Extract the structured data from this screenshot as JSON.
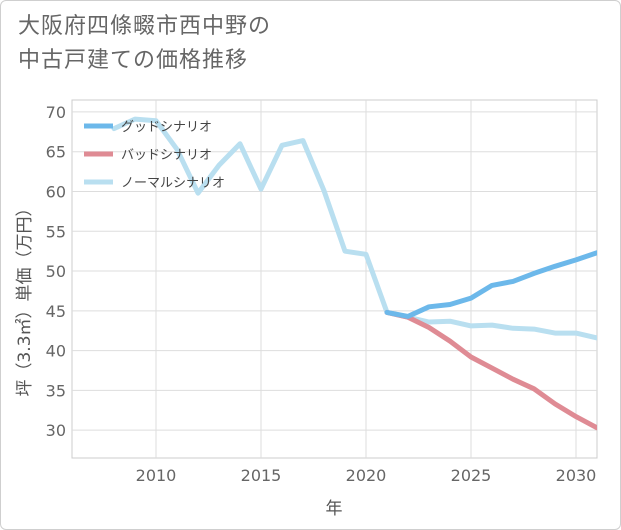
{
  "title_lines": [
    "大阪府四條畷市西中野の",
    "中古戸建ての価格推移"
  ],
  "chart_data": {
    "type": "line",
    "xlabel": "年",
    "ylabel": "坪（3.3㎡）単価（万円）",
    "xlim": [
      2006,
      2031
    ],
    "ylim": [
      26.5,
      71.5
    ],
    "xticks": [
      2010,
      2015,
      2020,
      2025,
      2030
    ],
    "yticks": [
      30,
      35,
      40,
      45,
      50,
      55,
      60,
      65,
      70
    ],
    "grid": true,
    "legend_position": "top-left",
    "series": [
      {
        "name": "グッドシナリオ",
        "color": "#6cb8ea",
        "x": [
          2021,
          2022,
          2023,
          2024,
          2025,
          2026,
          2027,
          2028,
          2029,
          2030,
          2031
        ],
        "y": [
          44.8,
          44.3,
          45.5,
          45.8,
          46.6,
          48.2,
          48.7,
          49.7,
          50.6,
          51.4,
          52.3
        ]
      },
      {
        "name": "バッドシナリオ",
        "color": "#df8b94",
        "x": [
          2021,
          2022,
          2023,
          2024,
          2025,
          2026,
          2027,
          2028,
          2029,
          2030,
          2031
        ],
        "y": [
          44.8,
          44.2,
          42.9,
          41.2,
          39.2,
          37.8,
          36.4,
          35.2,
          33.3,
          31.7,
          30.3
        ]
      },
      {
        "name": "ノーマルシナリオ",
        "color": "#b9dff0",
        "x": [
          2008,
          2009,
          2010,
          2011,
          2012,
          2013,
          2014,
          2015,
          2016,
          2017,
          2018,
          2019,
          2020,
          2021,
          2022,
          2023,
          2024,
          2025,
          2026,
          2027,
          2028,
          2029,
          2030,
          2031
        ],
        "y": [
          67.9,
          69.1,
          68.9,
          65.3,
          59.8,
          63.3,
          66.0,
          60.3,
          65.8,
          66.4,
          60.1,
          52.5,
          52.1,
          44.8,
          44.2,
          43.6,
          43.7,
          43.1,
          43.2,
          42.8,
          42.7,
          42.2,
          42.2,
          41.6
        ]
      }
    ]
  }
}
